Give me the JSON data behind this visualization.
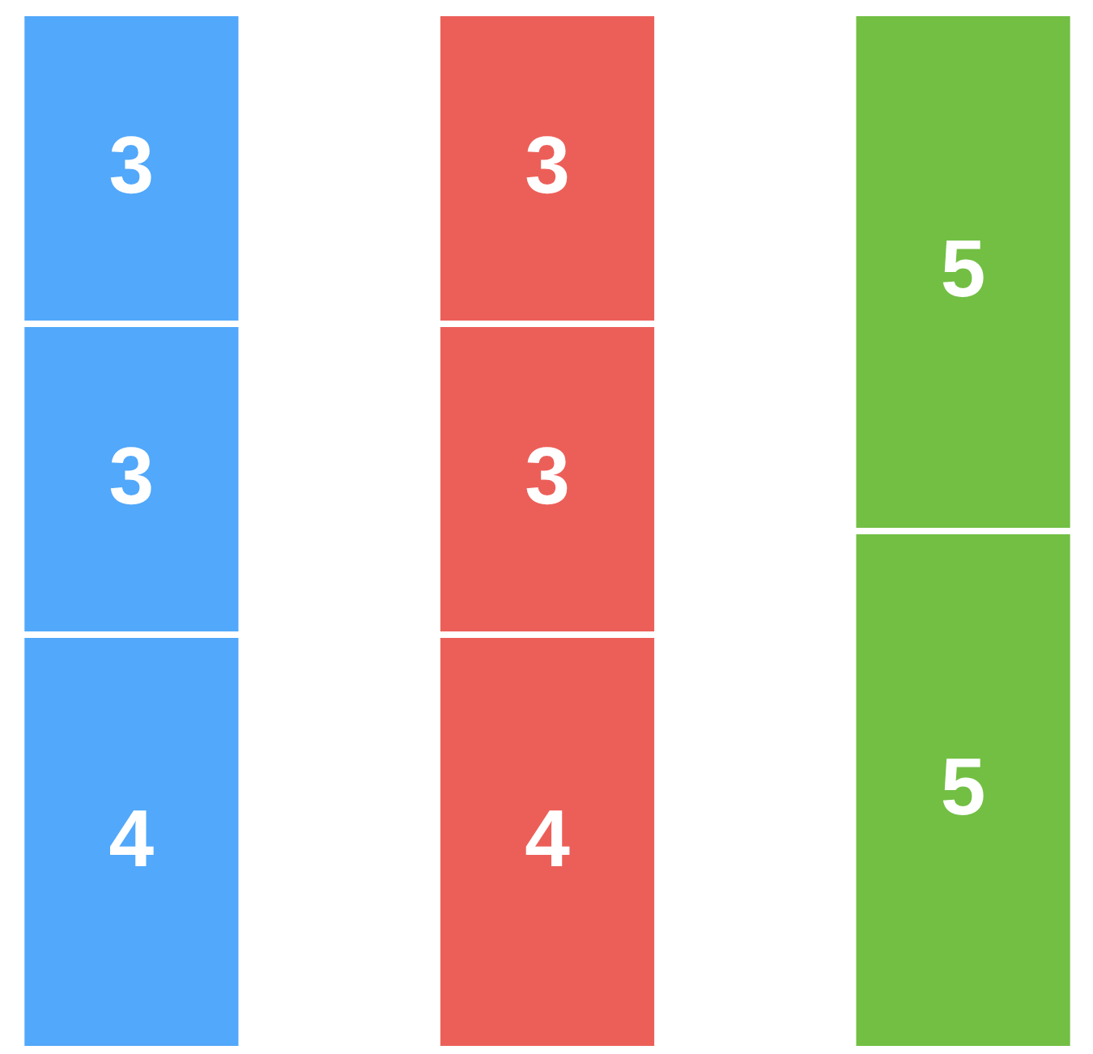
{
  "chart_data": {
    "type": "bar",
    "stacked": true,
    "data_labels": true,
    "categories": [
      null,
      null,
      null
    ],
    "series": [
      {
        "colors": [
          "#52a8fa",
          "#ec5f59",
          "#72bf44"
        ],
        "values": [
          4,
          4,
          5
        ]
      },
      {
        "colors": [
          "#52a8fa",
          "#ec5f59",
          "#72bf44"
        ],
        "values": [
          3,
          3,
          5
        ]
      },
      {
        "colors": [
          "#52a8fa",
          "#ec5f59",
          "#72bf44"
        ],
        "values": [
          3,
          3,
          null
        ]
      }
    ]
  }
}
